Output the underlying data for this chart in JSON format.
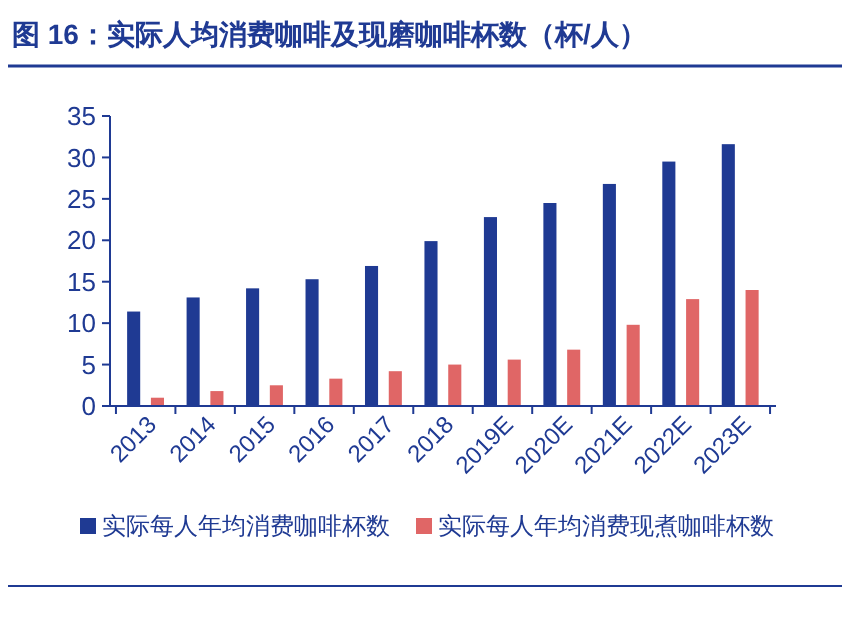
{
  "chart_data": {
    "type": "bar",
    "title": "图 16：实际人均消费咖啡及现磨咖啡杯数（杯/人）",
    "categories": [
      "2013",
      "2014",
      "2015",
      "2016",
      "2017",
      "2018",
      "2019E",
      "2020E",
      "2021E",
      "2022E",
      "2023E"
    ],
    "series": [
      {
        "name": "实际每人年均消费咖啡杯数",
        "color": "#1f3a93",
        "values": [
          11.4,
          13.1,
          14.2,
          15.3,
          16.9,
          19.9,
          22.8,
          24.5,
          26.8,
          29.5,
          31.6
        ]
      },
      {
        "name": "实际每人年均消费现煮咖啡杯数",
        "color": "#e06666",
        "values": [
          1.0,
          1.8,
          2.5,
          3.3,
          4.2,
          5.0,
          5.6,
          6.8,
          9.8,
          12.9,
          14.0
        ]
      }
    ],
    "ylim": [
      0,
      35
    ],
    "yticks": [
      0,
      5,
      10,
      15,
      20,
      25,
      30,
      35
    ],
    "grid": false,
    "legend": "bottom"
  }
}
